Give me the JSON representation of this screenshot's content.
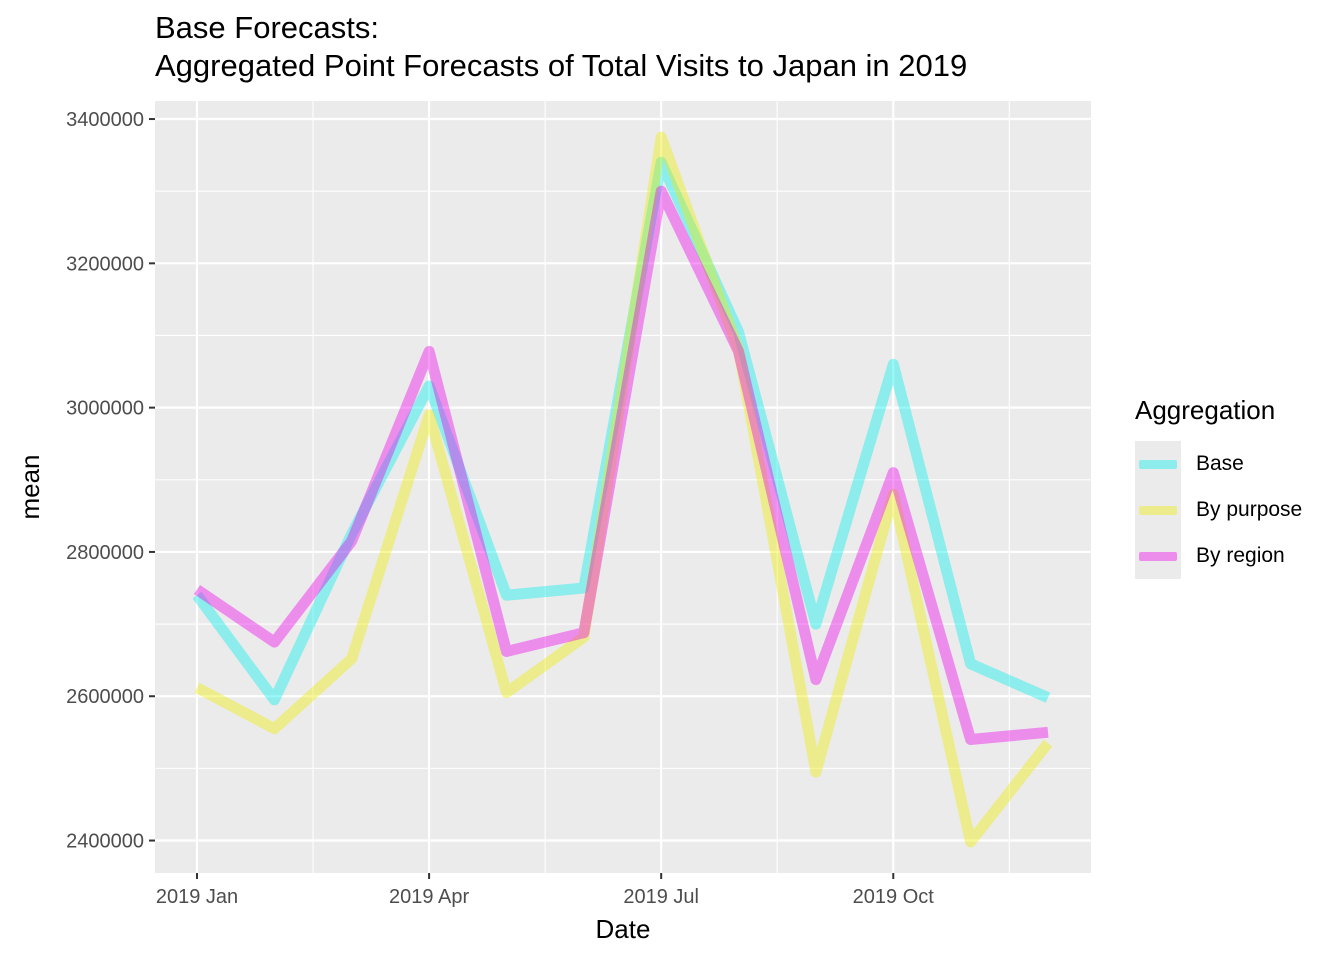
{
  "title": {
    "line1": "Base Forecasts:",
    "line2": "Aggregated Point Forecasts of Total Visits to Japan in 2019"
  },
  "chart_data": {
    "type": "line",
    "xlabel": "Date",
    "ylabel": "mean",
    "x": [
      "2019 Jan",
      "2019 Feb",
      "2019 Mar",
      "2019 Apr",
      "2019 May",
      "2019 Jun",
      "2019 Jul",
      "2019 Aug",
      "2019 Sep",
      "2019 Oct",
      "2019 Nov",
      "2019 Dec"
    ],
    "x_tick_labels": [
      "2019 Jan",
      "2019 Apr",
      "2019 Jul",
      "2019 Oct"
    ],
    "y_ticks": [
      2400000,
      2600000,
      2800000,
      3000000,
      3200000,
      3400000
    ],
    "y_tick_labels": [
      "2400000",
      "2600000",
      "2800000",
      "3000000",
      "3200000",
      "3400000"
    ],
    "ylim": [
      2355000,
      3425000
    ],
    "grid": true,
    "legend_title": "Aggregation",
    "legend_position": "right",
    "series": [
      {
        "name": "Base",
        "color": "#00eeee",
        "values": [
          2740000,
          2595000,
          2825000,
          3030000,
          2740000,
          2750000,
          3340000,
          3105000,
          2700000,
          3060000,
          2645000,
          2598000
        ]
      },
      {
        "name": "By purpose",
        "color": "#eeee00",
        "values": [
          2612000,
          2555000,
          2652000,
          2990000,
          2605000,
          2682000,
          3375000,
          3080000,
          2495000,
          2880000,
          2398000,
          2535000
        ]
      },
      {
        "name": "By region",
        "color": "#ee00ee",
        "values": [
          2748000,
          2675000,
          2815000,
          3078000,
          2662000,
          2688000,
          3300000,
          3078000,
          2623000,
          2910000,
          2540000,
          2550000
        ]
      }
    ]
  }
}
